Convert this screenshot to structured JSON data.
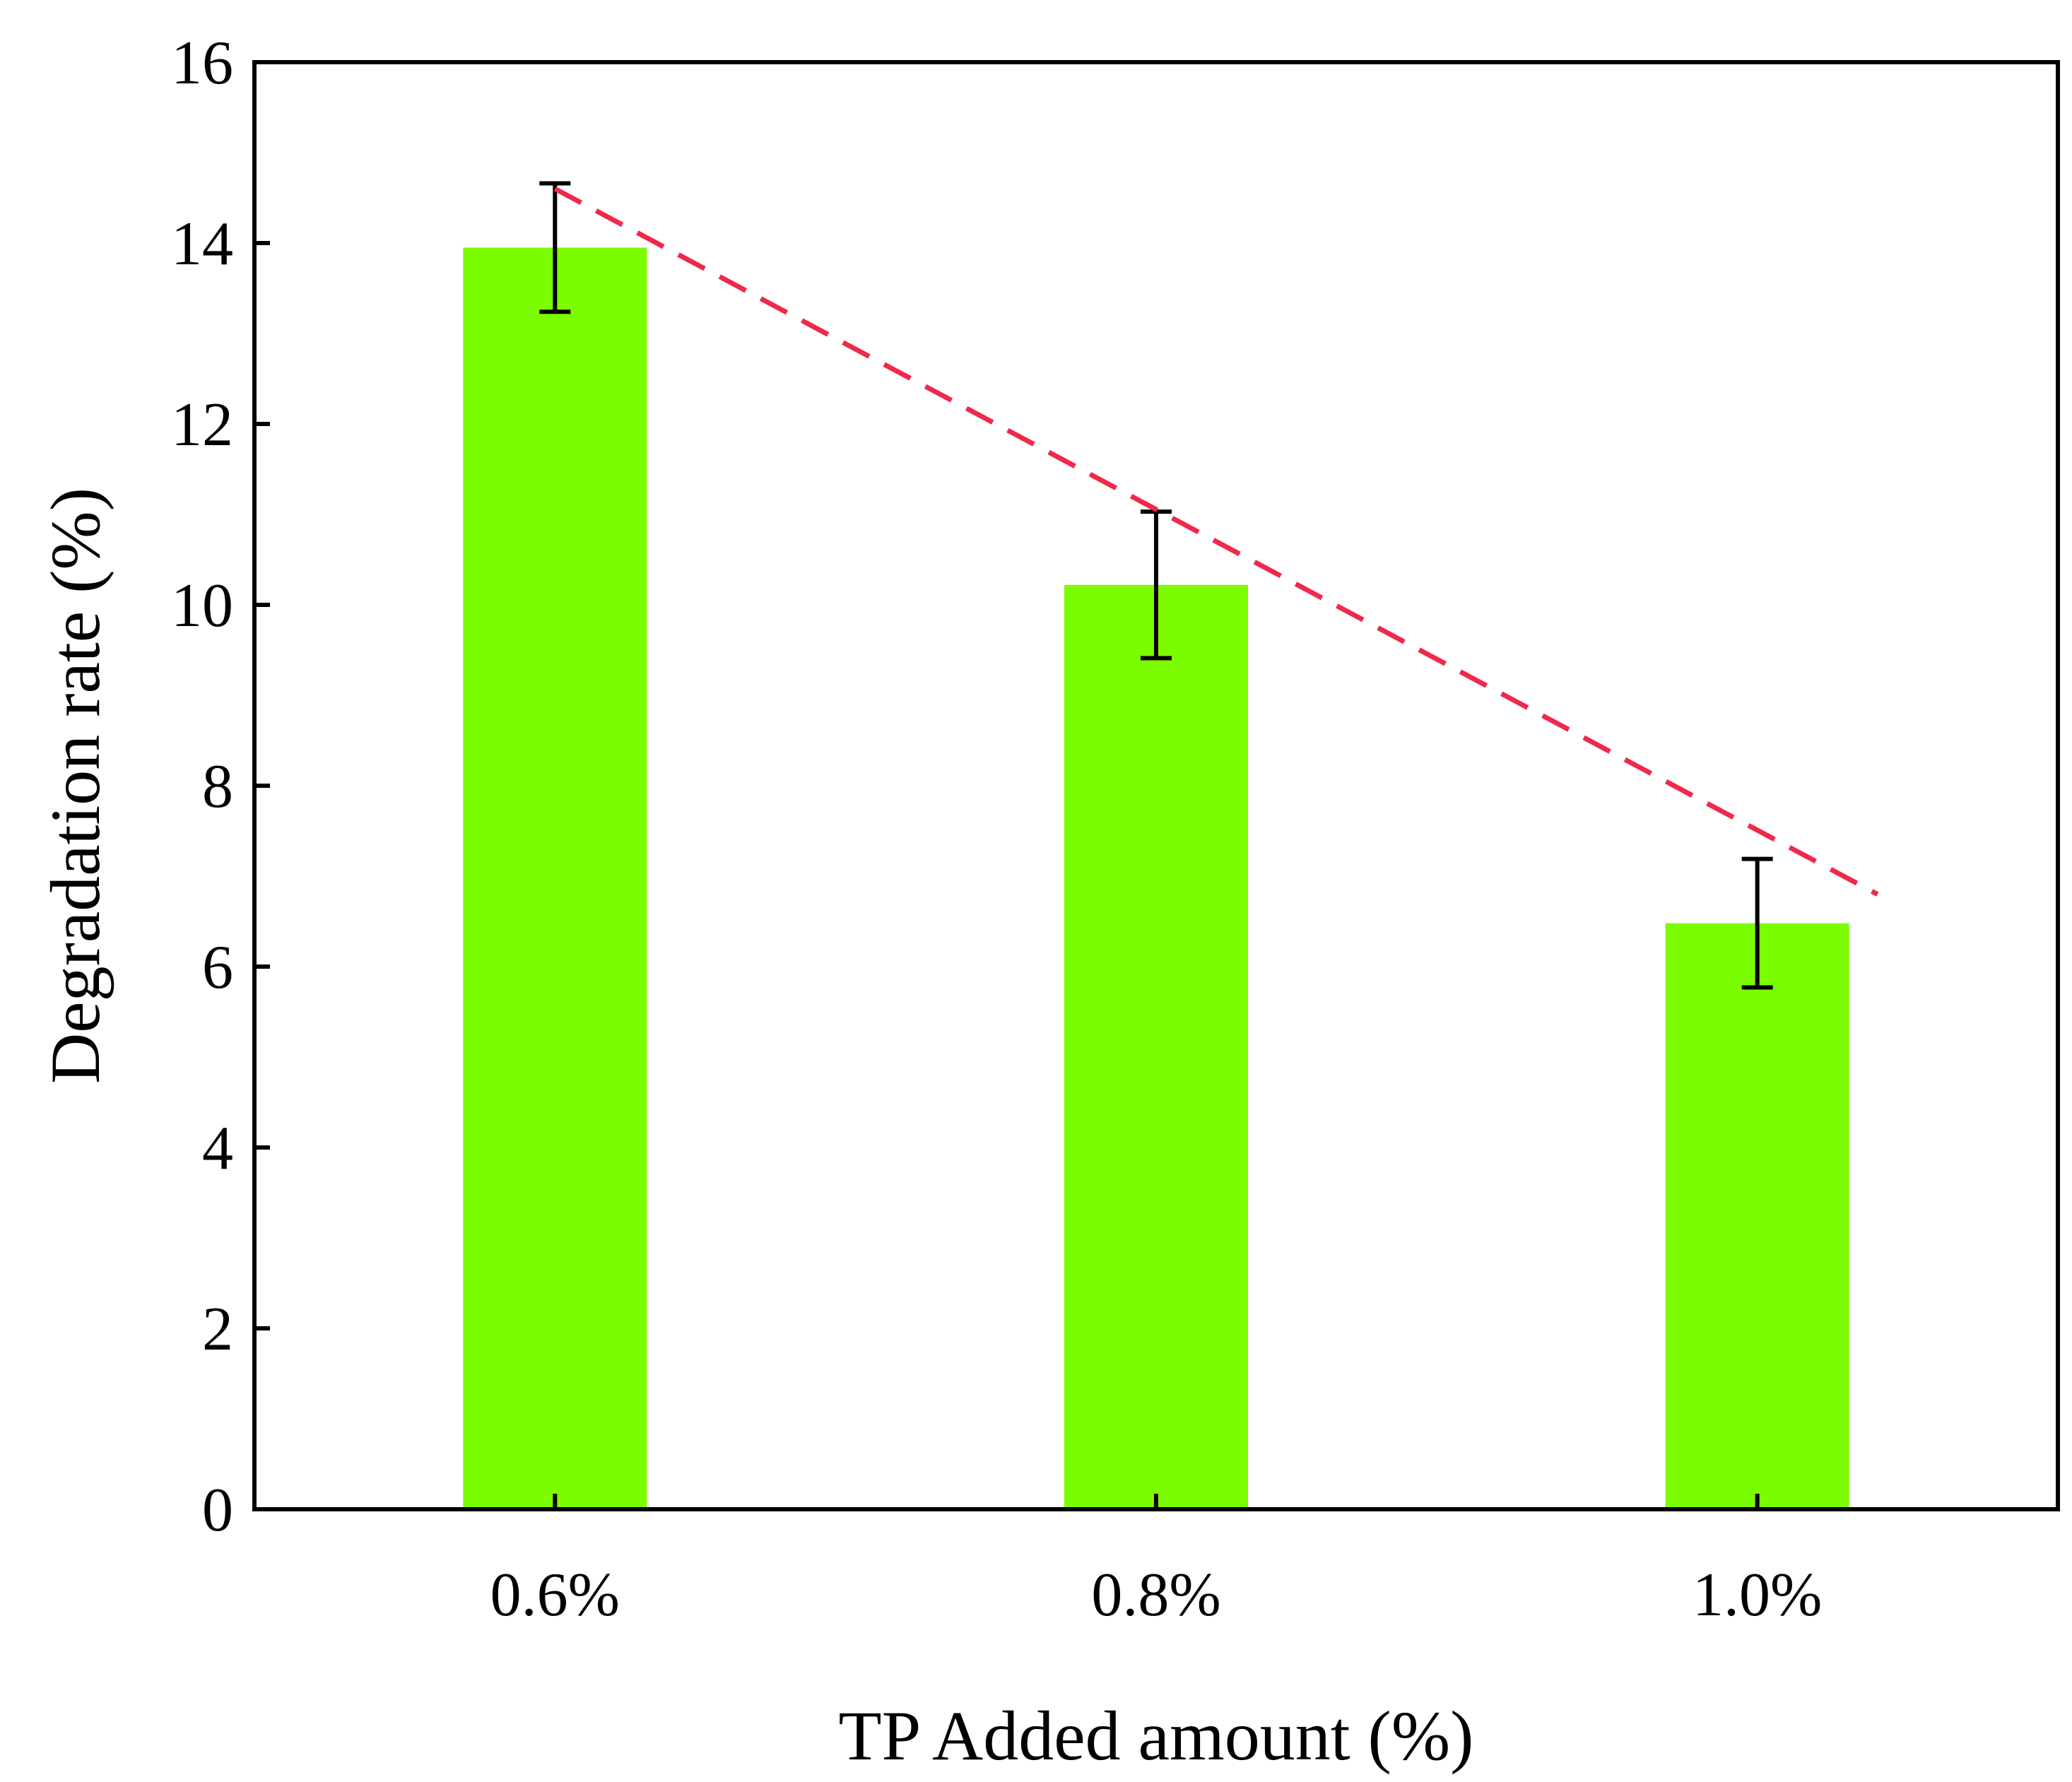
{
  "chart_data": {
    "type": "bar",
    "title": "",
    "xlabel": "TP Added amount (%)",
    "ylabel": "Degradation rate (%)",
    "categories": [
      "0.6%",
      "0.8%",
      "1.0%"
    ],
    "values": [
      13.95,
      10.22,
      6.48
    ],
    "errors": [
      0.71,
      0.81,
      0.71
    ],
    "ylim": [
      0,
      16
    ],
    "yticks": [
      0,
      2,
      4,
      6,
      8,
      10,
      12,
      14,
      16
    ],
    "ytick_labels": [
      "0",
      "2",
      "4",
      "6",
      "8",
      "10",
      "12",
      "14",
      "16"
    ],
    "grid": false,
    "bar_color": "#7cfc00",
    "error_bar_color": "#000000",
    "annotations": [
      {
        "type": "trend-arrow",
        "style": "dashed",
        "color": "#f0284a",
        "from": {
          "x": 0.6,
          "y": 14.6
        },
        "to": {
          "x": 1.04,
          "y": 6.8
        }
      }
    ]
  }
}
